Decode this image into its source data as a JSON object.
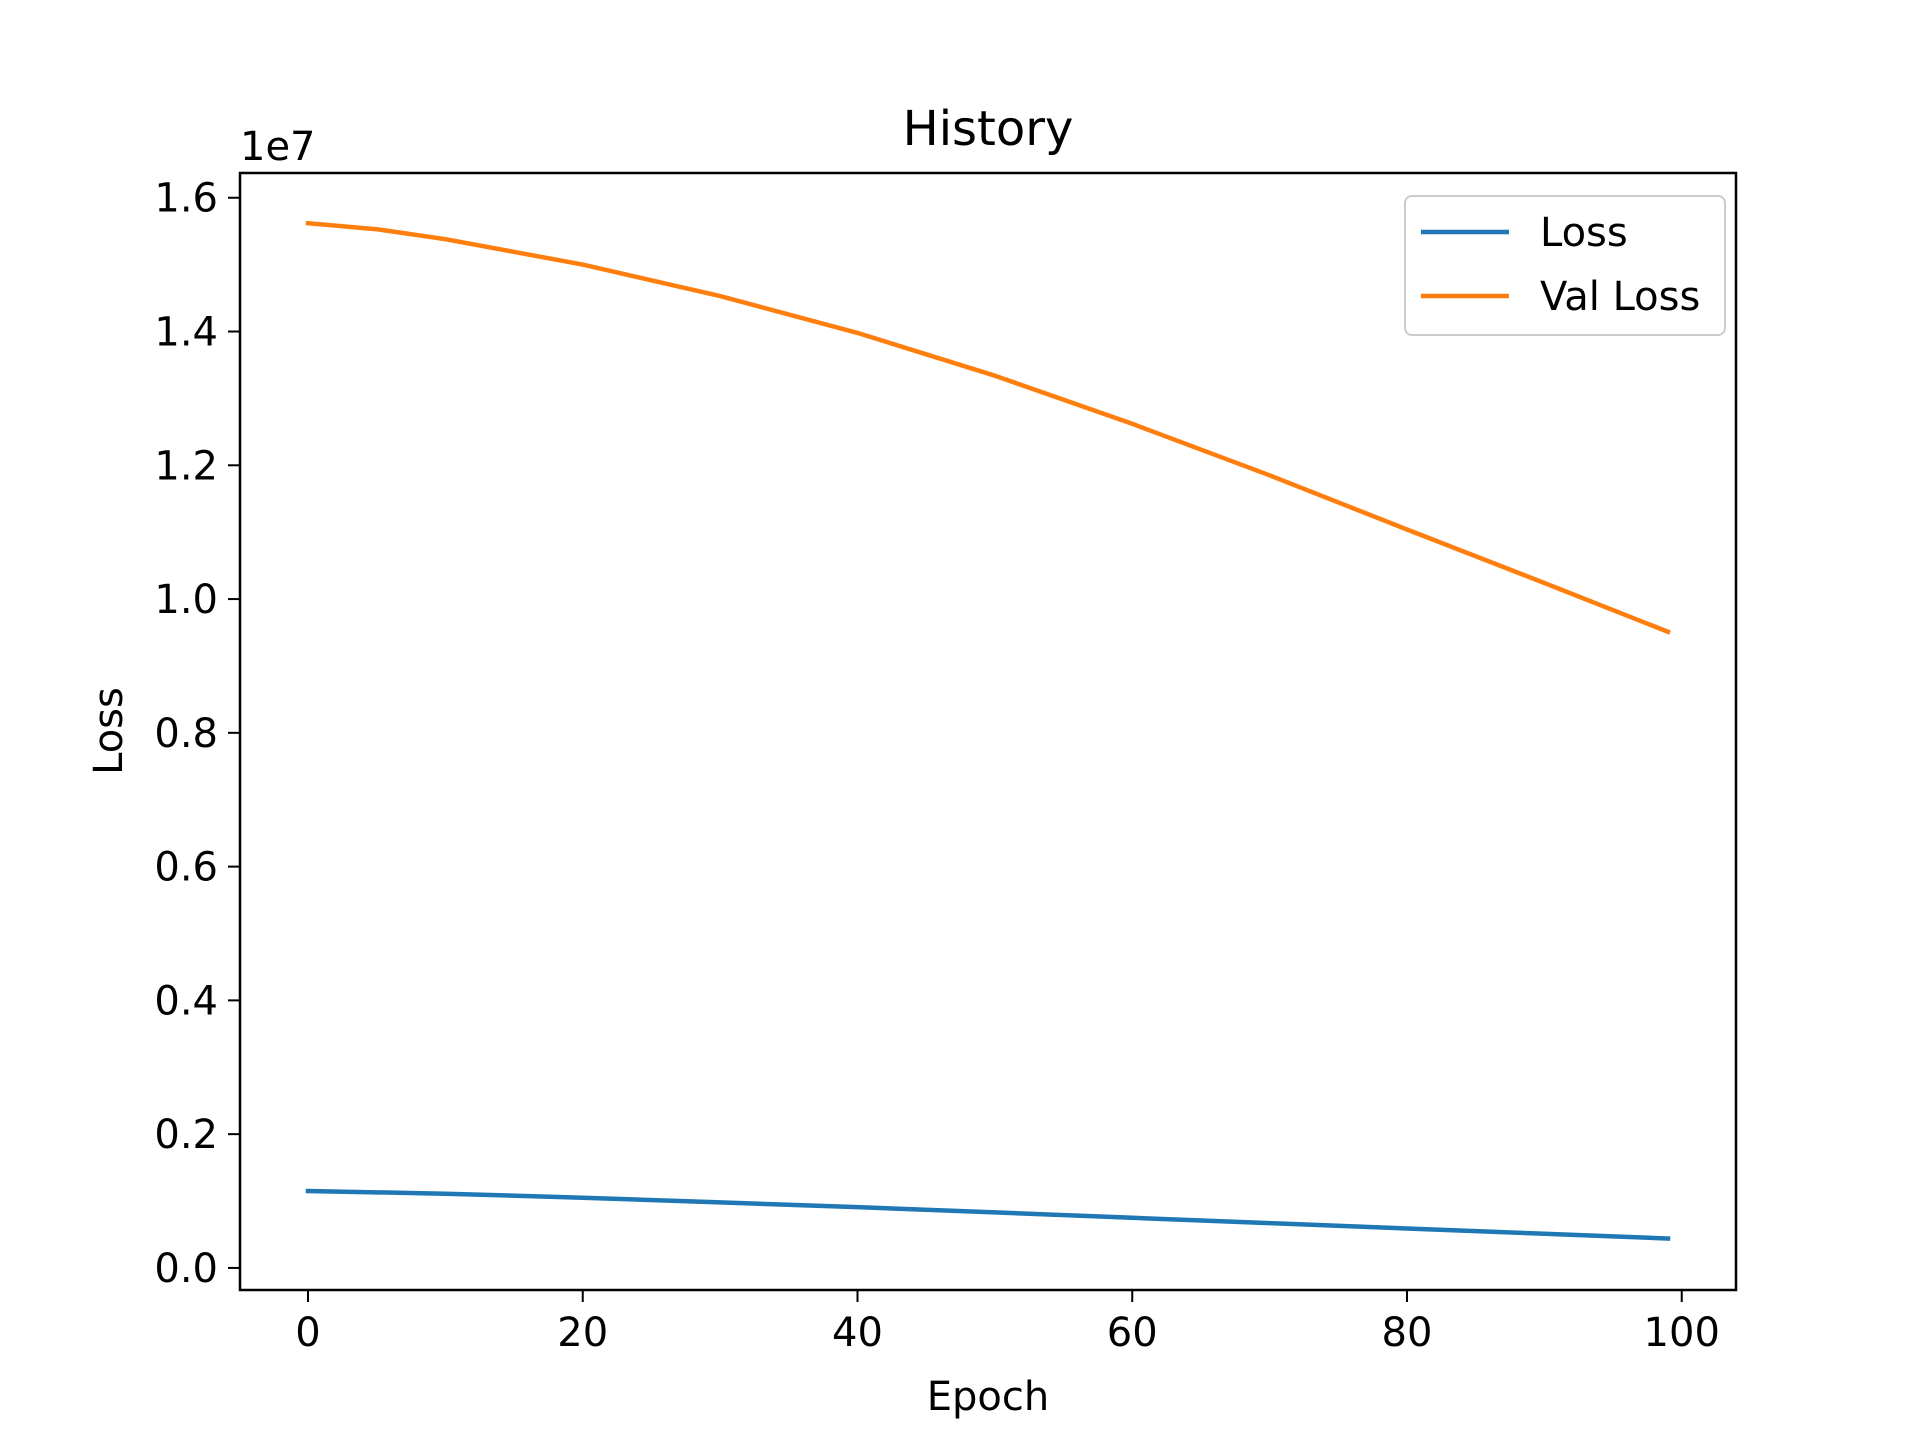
{
  "chart_data": {
    "type": "line",
    "title": "History",
    "xlabel": "Epoch",
    "ylabel": "Loss",
    "y_offset_label": "1e7",
    "y_scale_factor": 10000000,
    "xlim": [
      -4.95,
      103.95
    ],
    "ylim": [
      -0.033,
      1.637
    ],
    "xticks": [
      0,
      20,
      40,
      60,
      80,
      100
    ],
    "xtick_labels": [
      "0",
      "20",
      "40",
      "60",
      "80",
      "100"
    ],
    "yticks": [
      0.0,
      0.2,
      0.4,
      0.6,
      0.8,
      1.0,
      1.2,
      1.4,
      1.6
    ],
    "ytick_labels": [
      "0.0",
      "0.2",
      "0.4",
      "0.6",
      "0.8",
      "1.0",
      "1.2",
      "1.4",
      "1.6"
    ],
    "grid": false,
    "legend_position": "top-right",
    "series": [
      {
        "name": "Loss",
        "color": "#1f77b4",
        "x": [
          0,
          10,
          20,
          30,
          40,
          50,
          60,
          70,
          80,
          90,
          99
        ],
        "y": [
          0.115,
          0.111,
          0.105,
          0.098,
          0.091,
          0.083,
          0.075,
          0.067,
          0.059,
          0.051,
          0.044
        ]
      },
      {
        "name": "Val Loss",
        "color": "#ff7f0e",
        "x": [
          0,
          5,
          10,
          20,
          30,
          40,
          50,
          60,
          70,
          80,
          90,
          99
        ],
        "y": [
          1.562,
          1.553,
          1.538,
          1.5,
          1.453,
          1.398,
          1.334,
          1.262,
          1.185,
          1.104,
          1.024,
          0.951
        ]
      }
    ]
  }
}
